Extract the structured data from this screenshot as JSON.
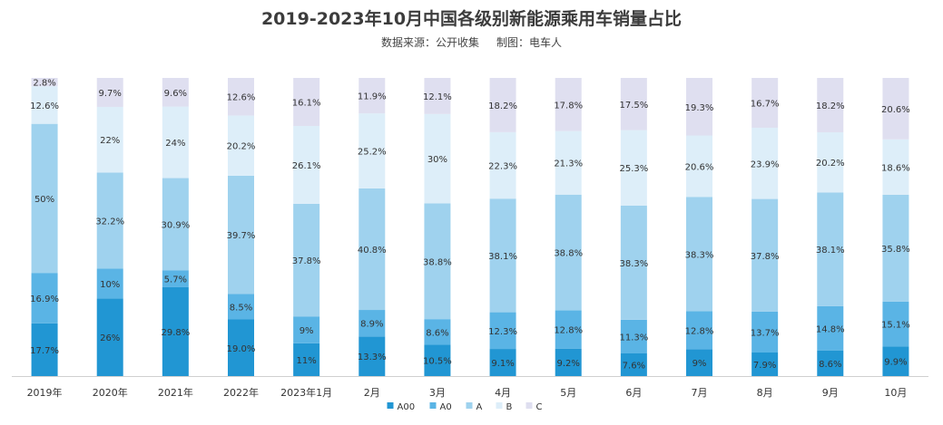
{
  "title": "2019-2023年10月中国各级别新能源乘用车销量占比",
  "subtitle": "数据来源：公开收集     制图：电车人",
  "chart_data": {
    "type": "bar",
    "stacked": true,
    "percent": true,
    "categories": [
      "2019年",
      "2020年",
      "2021年",
      "2022年",
      "2023年1月",
      "2月",
      "3月",
      "4月",
      "5月",
      "6月",
      "7月",
      "8月",
      "9月",
      "10月"
    ],
    "series": [
      {
        "name": "A00",
        "color": "#2196d3",
        "values": [
          17.7,
          26,
          29.8,
          19.0,
          11,
          13.3,
          10.5,
          9.1,
          9.2,
          7.6,
          9,
          7.9,
          8.6,
          9.9
        ],
        "labels": [
          "17.7%",
          "26%",
          "29.8%",
          "19.0%",
          "11%",
          "13.3%",
          "10.5%",
          "9.1%",
          "9.2%",
          "7.6%",
          "9%",
          "7.9%",
          "8.6%",
          "9.9%"
        ]
      },
      {
        "name": "A0",
        "color": "#5ab4e5",
        "values": [
          16.9,
          10,
          5.7,
          8.5,
          9,
          8.9,
          8.6,
          12.3,
          12.8,
          11.3,
          12.8,
          13.7,
          14.8,
          15.1
        ],
        "labels": [
          "16.9%",
          "10%",
          "5.7%",
          "8.5%",
          "9%",
          "8.9%",
          "8.6%",
          "12.3%",
          "12.8%",
          "11.3%",
          "12.8%",
          "13.7%",
          "14.8%",
          "15.1%"
        ]
      },
      {
        "name": "A",
        "color": "#9fd2ee",
        "values": [
          50,
          32.2,
          30.9,
          39.7,
          37.8,
          40.8,
          38.8,
          38.1,
          38.8,
          38.3,
          38.3,
          37.8,
          38.1,
          35.8
        ],
        "labels": [
          "50%",
          "32.2%",
          "30.9%",
          "39.7%",
          "37.8%",
          "40.8%",
          "38.8%",
          "38.1%",
          "38.8%",
          "38.3%",
          "38.3%",
          "37.8%",
          "38.1%",
          "35.8%"
        ]
      },
      {
        "name": "B",
        "color": "#ddeef9",
        "values": [
          12.6,
          22,
          24,
          20.2,
          26.1,
          25.2,
          30,
          22.3,
          21.3,
          25.3,
          20.6,
          23.9,
          20.2,
          18.6
        ],
        "labels": [
          "12.6%",
          "22%",
          "24%",
          "20.2%",
          "26.1%",
          "25.2%",
          "30%",
          "22.3%",
          "21.3%",
          "25.3%",
          "20.6%",
          "23.9%",
          "20.2%",
          "18.6%"
        ]
      },
      {
        "name": "C",
        "color": "#dfdff0",
        "values": [
          2.8,
          9.7,
          9.6,
          12.6,
          16.1,
          11.9,
          12.1,
          18.2,
          17.8,
          17.5,
          19.3,
          16.7,
          18.2,
          20.6
        ],
        "labels": [
          "2.8%",
          "9.7%",
          "9.6%",
          "12.6%",
          "16.1%",
          "11.9%",
          "12.1%",
          "18.2%",
          "17.8%",
          "17.5%",
          "19.3%",
          "16.7%",
          "18.2%",
          "20.6%"
        ]
      }
    ],
    "ylim": [
      0,
      100
    ],
    "legend": "bottom",
    "grid": false
  }
}
